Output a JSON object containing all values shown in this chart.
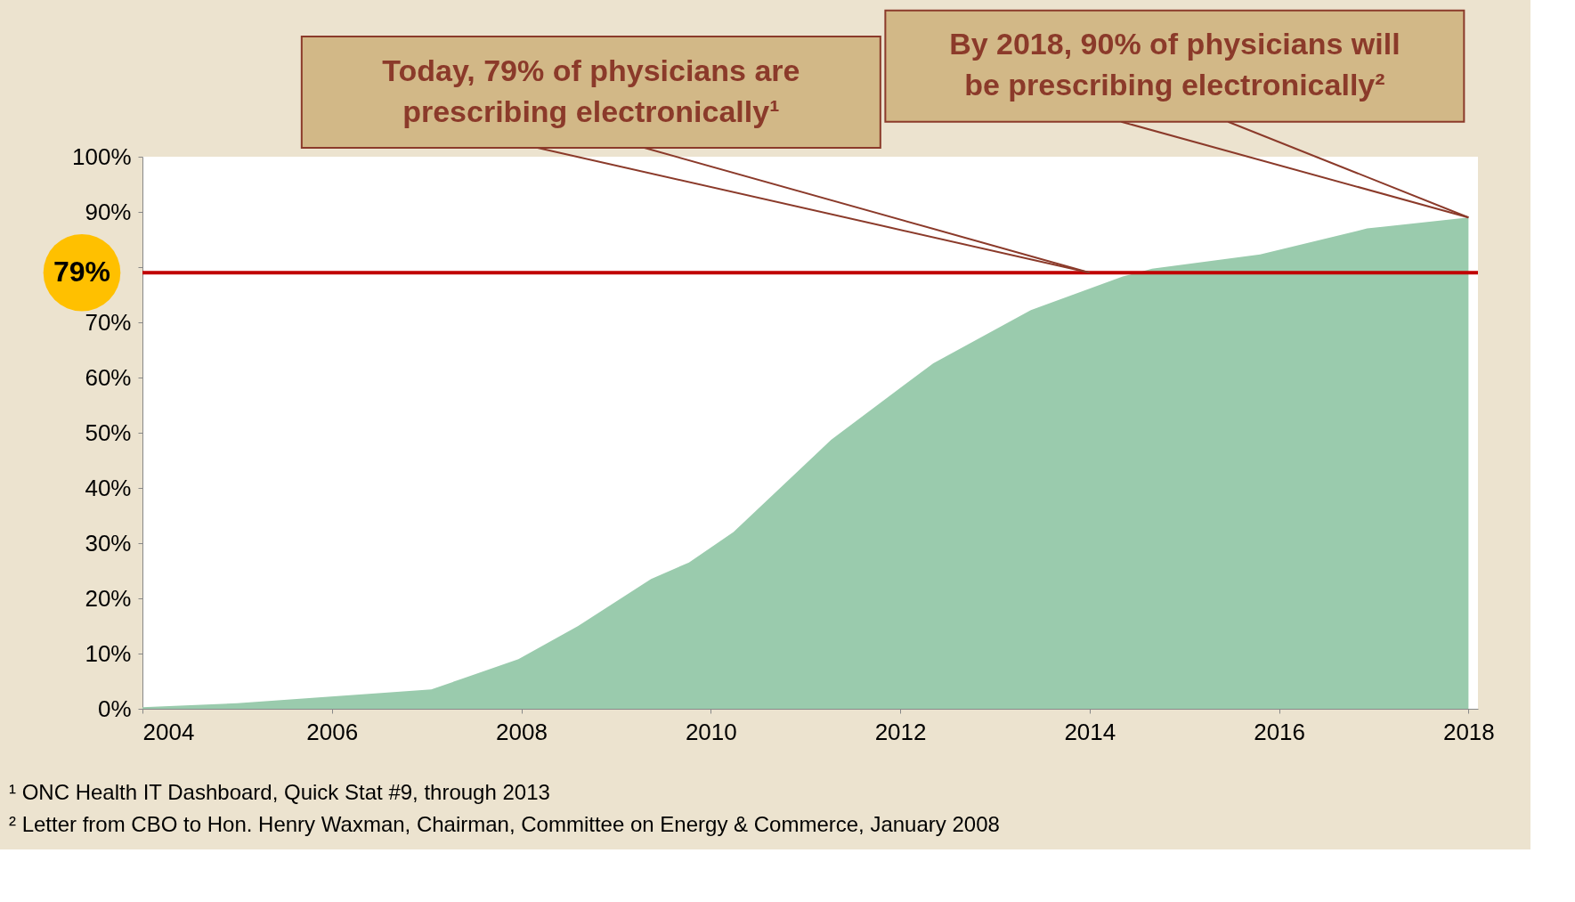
{
  "chart_data": {
    "type": "area",
    "x": [
      2004,
      2005,
      2007.05,
      2007.97,
      2008.6,
      2009.37,
      2009.77,
      2010.24,
      2011.27,
      2012.35,
      2013.38,
      2014.35,
      2014.66,
      2015.8,
      2016.93,
      2018
    ],
    "series": [
      {
        "color": "#9acbad",
        "values": [
          0.3,
          1,
          3.5,
          9,
          15,
          23.5,
          26.5,
          32,
          48.7,
          62.6,
          72.2,
          78.3,
          79.7,
          82.3,
          87,
          89
        ]
      }
    ],
    "xlim": [
      2004,
      2018.1
    ],
    "xticks": [
      2004,
      2006,
      2008,
      2010,
      2012,
      2014,
      2016,
      2018
    ],
    "ylim": [
      0,
      100
    ],
    "yticks": [
      {
        "value": 0,
        "label": "0%"
      },
      {
        "value": 10,
        "label": "10%"
      },
      {
        "value": 20,
        "label": "20%"
      },
      {
        "value": 30,
        "label": "30%"
      },
      {
        "value": 40,
        "label": "40%"
      },
      {
        "value": 50,
        "label": "50%"
      },
      {
        "value": 60,
        "label": "60%"
      },
      {
        "value": 70,
        "label": "70%"
      },
      {
        "value": 80,
        "label": null
      },
      {
        "value": 90,
        "label": "90%"
      },
      {
        "value": 100,
        "label": "100%"
      }
    ],
    "ref_lines": [
      {
        "axis": "y",
        "value": 79,
        "label": "79%",
        "color": "#c00000"
      }
    ],
    "grid": false,
    "annotations": [
      {
        "text": "Today, 79% of physicians are prescribing electronically¹",
        "x": 2014,
        "y": 79
      },
      {
        "text": "By 2018, 90% of physicians will be prescribing electronically²",
        "x": 2018,
        "y": 89
      },
      "¹ ONC Health IT Dashboard, Quick Stat #9, through 2013",
      "² Letter from CBO to Hon. Henry Waxman, Chairman, Committee on Energy & Commerce, January 2008"
    ]
  }
}
